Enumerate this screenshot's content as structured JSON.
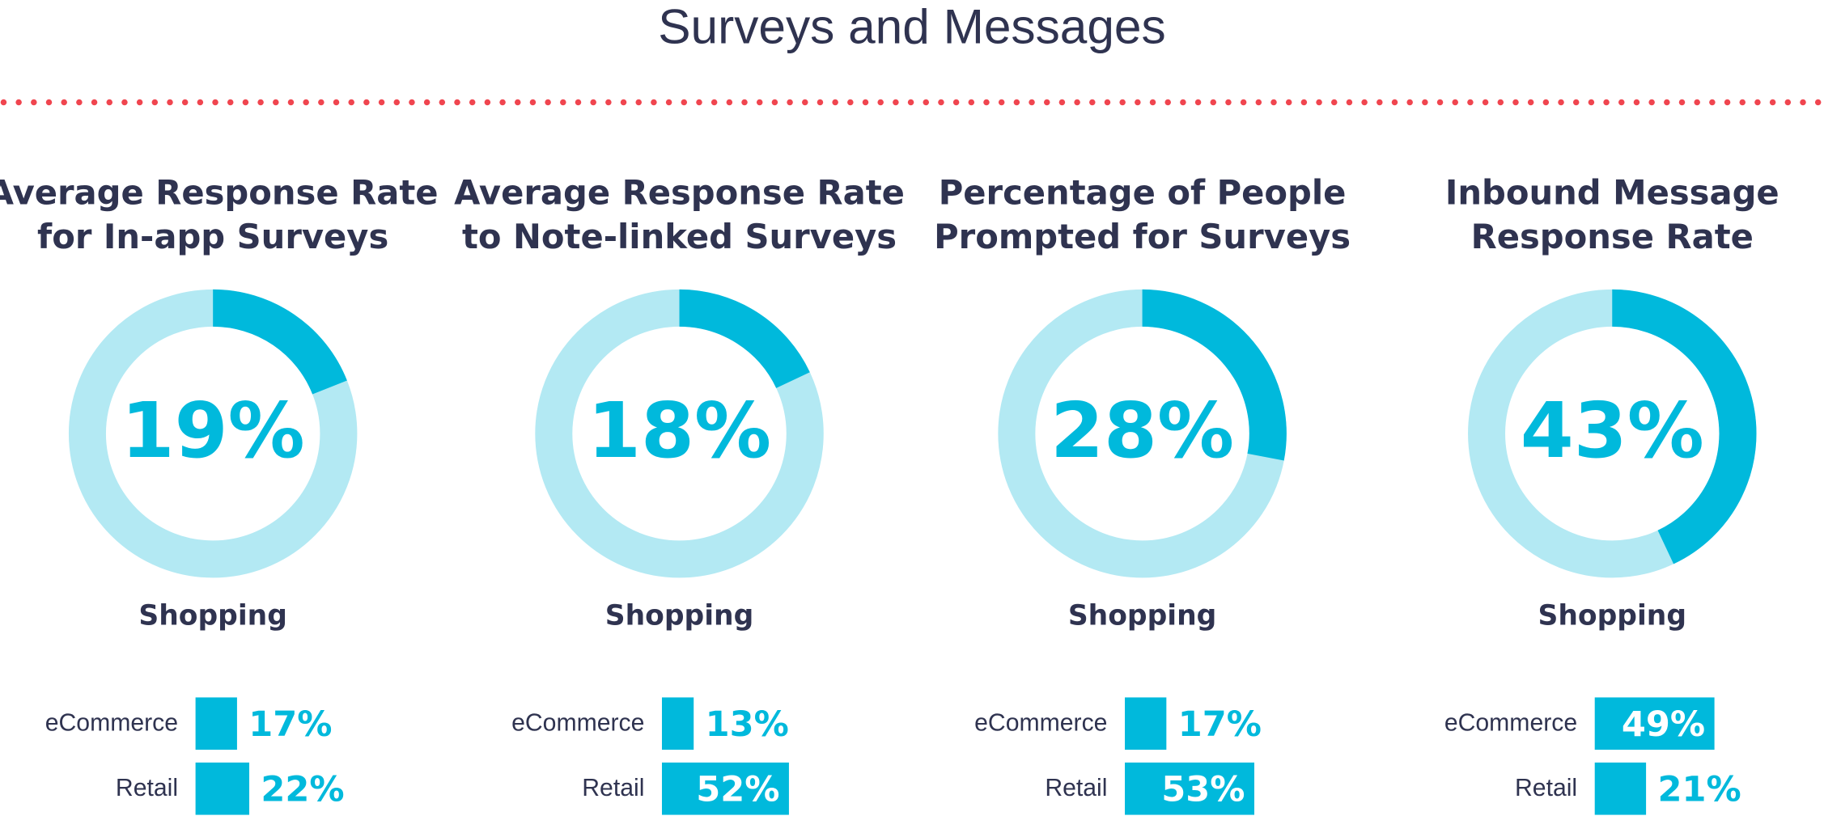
{
  "title": "Surveys and Messages",
  "chart_data": [
    {
      "type": "donut",
      "title_lines": [
        "Average Response Rate",
        "for In-app Surveys"
      ],
      "categories": [
        "Shopping"
      ],
      "values": [
        19
      ],
      "value_labels": [
        "19%"
      ],
      "color": "#00b9dc",
      "track_color": "#b3e9f3",
      "breakdown": {
        "type": "bar",
        "categories": [
          "eCommerce",
          "Retail"
        ],
        "values": [
          17,
          22
        ],
        "value_labels": [
          "17%",
          "22%"
        ],
        "color": "#00b9dc"
      }
    },
    {
      "type": "donut",
      "title_lines": [
        "Average Response Rate",
        "to Note-linked Surveys"
      ],
      "categories": [
        "Shopping"
      ],
      "values": [
        18
      ],
      "value_labels": [
        "18%"
      ],
      "color": "#00b9dc",
      "track_color": "#b3e9f3",
      "breakdown": {
        "type": "bar",
        "categories": [
          "eCommerce",
          "Retail"
        ],
        "values": [
          13,
          52
        ],
        "value_labels": [
          "13%",
          "52%"
        ],
        "color": "#00b9dc"
      }
    },
    {
      "type": "donut",
      "title_lines": [
        "Percentage of People",
        "Prompted for Surveys"
      ],
      "categories": [
        "Shopping"
      ],
      "values": [
        28
      ],
      "value_labels": [
        "28%"
      ],
      "color": "#00b9dc",
      "track_color": "#b3e9f3",
      "breakdown": {
        "type": "bar",
        "categories": [
          "eCommerce",
          "Retail"
        ],
        "values": [
          17,
          53
        ],
        "value_labels": [
          "17%",
          "53%"
        ],
        "color": "#00b9dc"
      }
    },
    {
      "type": "donut",
      "title_lines": [
        "Inbound Message",
        "Response Rate"
      ],
      "categories": [
        "Shopping"
      ],
      "values": [
        43
      ],
      "value_labels": [
        "43%"
      ],
      "color": "#00b9dc",
      "track_color": "#b3e9f3",
      "breakdown": {
        "type": "bar",
        "categories": [
          "eCommerce",
          "Retail"
        ],
        "values": [
          49,
          21
        ],
        "value_labels": [
          "49%",
          "21%"
        ],
        "color": "#00b9dc"
      }
    }
  ]
}
